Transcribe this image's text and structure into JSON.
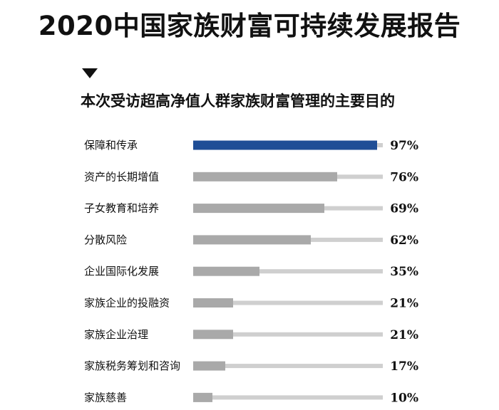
{
  "header": {
    "title": "2020中国家族财富可持续发展报告"
  },
  "chart_data": {
    "type": "bar",
    "orientation": "horizontal",
    "title": "本次受访超高净值人群家族财富管理的主要目的",
    "categories": [
      "保障和传承",
      "资产的长期增值",
      "子女教育和培养",
      "分散风险",
      "企业国际化发展",
      "家族企业的投融资",
      "家族企业治理",
      "家族税务筹划和咨询",
      "家族慈善"
    ],
    "values": [
      97,
      76,
      69,
      62,
      35,
      21,
      21,
      17,
      10
    ],
    "value_labels": [
      "97%",
      "76%",
      "69%",
      "62%",
      "35%",
      "21%",
      "21%",
      "17%",
      "10%"
    ],
    "unit": "%",
    "xlim": [
      0,
      100
    ],
    "grid": false,
    "legend": "none",
    "colors": {
      "highlight_bar": "#1f4e96",
      "bar": "#a9a9a9",
      "track": "#cfcfcf",
      "text": "#111111"
    }
  }
}
